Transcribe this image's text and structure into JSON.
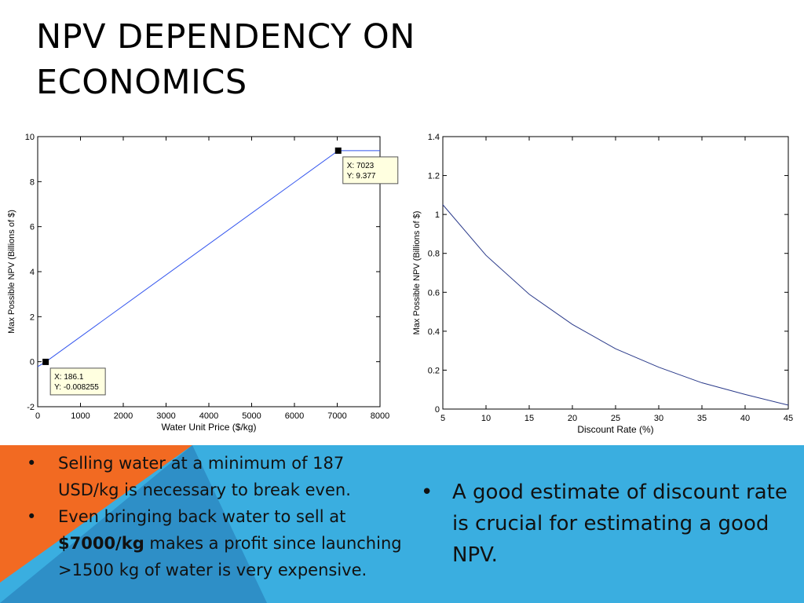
{
  "slide": {
    "title_line1": "NPV DEPENDENCY ON",
    "title_line2": "ECONOMICS"
  },
  "chart_data": [
    {
      "type": "line",
      "title": "",
      "xlabel": "Water Unit Price ($/kg)",
      "ylabel": "Max Possible NPV (Billions of $)",
      "xlim": [
        0,
        8000
      ],
      "ylim": [
        -2,
        10
      ],
      "xticks": [
        0,
        1000,
        2000,
        3000,
        4000,
        5000,
        6000,
        7000,
        8000
      ],
      "yticks": [
        -2,
        0,
        2,
        4,
        6,
        8,
        10
      ],
      "grid": false,
      "line_color": "#3355ee",
      "series": [
        {
          "x": [
            0,
            186.1,
            7023,
            8000
          ],
          "y": [
            -0.22,
            -0.008255,
            9.377,
            9.377
          ]
        }
      ],
      "datatips": [
        {
          "x": 186.1,
          "y": -0.008255,
          "line1": "X: 186.1",
          "line2": "Y: -0.008255",
          "placement": "bottom-right"
        },
        {
          "x": 7023,
          "y": 9.377,
          "line1": "X: 7023",
          "line2": "Y: 9.377",
          "placement": "bottom-right"
        }
      ]
    },
    {
      "type": "line",
      "title": "",
      "xlabel": "Discount Rate (%)",
      "ylabel": "Max Possible NPV (Billions of $)",
      "xlim": [
        5,
        45
      ],
      "ylim": [
        0,
        1.4
      ],
      "xticks": [
        5,
        10,
        15,
        20,
        25,
        30,
        35,
        40,
        45
      ],
      "yticks": [
        0,
        0.2,
        0.4,
        0.6,
        0.8,
        1,
        1.2,
        1.4
      ],
      "grid": false,
      "line_color": "#2a3a8a",
      "series": [
        {
          "x": [
            5,
            10,
            15,
            20,
            25,
            30,
            35,
            40,
            45
          ],
          "y": [
            1.05,
            0.79,
            0.59,
            0.435,
            0.31,
            0.215,
            0.135,
            0.075,
            0.02
          ]
        }
      ]
    }
  ],
  "bullets_left": [
    {
      "text": "Selling water at a minimum of 187 USD/kg is necessary to break even."
    },
    {
      "pre": "Even bringing back water to sell at ",
      "bold": "$7000/kg",
      "post": " makes a profit since launching >1500 kg of water is very expensive."
    }
  ],
  "bullets_right": [
    {
      "text": "A good estimate of discount rate is crucial for estimating a good NPV."
    }
  ],
  "colors": {
    "orange": "#f26a22",
    "blue": "#3aaee0",
    "mid_blue": "#2e8fc7"
  }
}
